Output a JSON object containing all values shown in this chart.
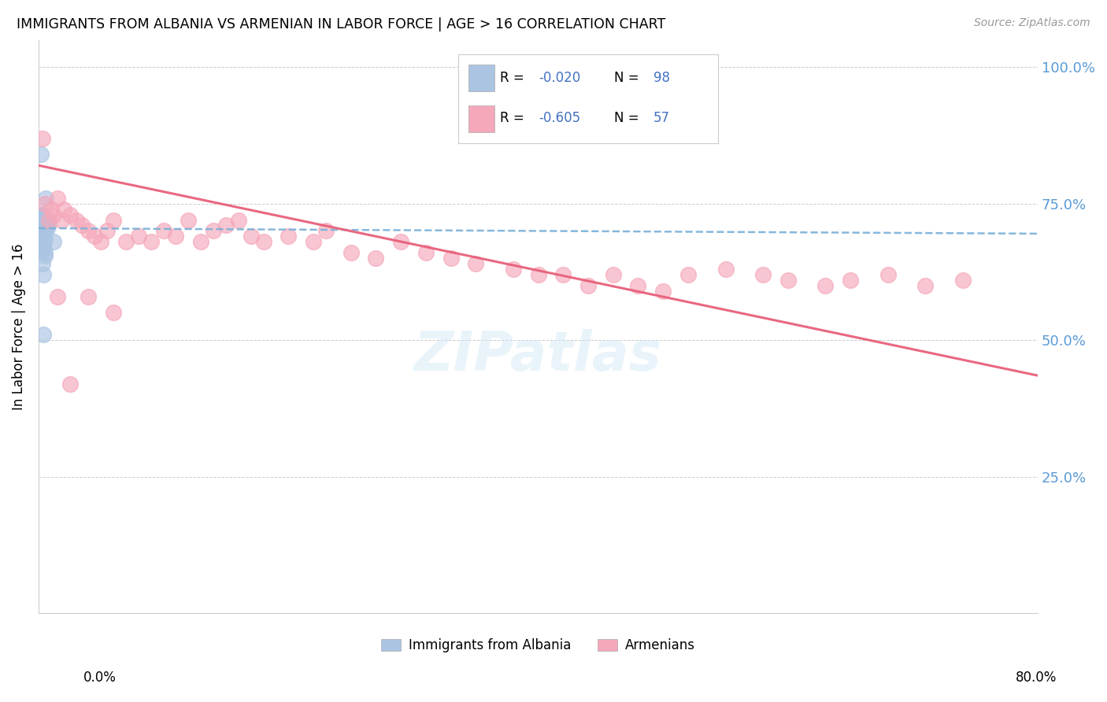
{
  "title": "IMMIGRANTS FROM ALBANIA VS ARMENIAN IN LABOR FORCE | AGE > 16 CORRELATION CHART",
  "source": "Source: ZipAtlas.com",
  "ylabel": "In Labor Force | Age > 16",
  "ytick_labels": [
    "",
    "25.0%",
    "50.0%",
    "75.0%",
    "100.0%"
  ],
  "ytick_positions": [
    0.0,
    0.25,
    0.5,
    0.75,
    1.0
  ],
  "xlim": [
    0.0,
    0.8
  ],
  "ylim": [
    0.0,
    1.05
  ],
  "albania_R": -0.02,
  "albania_N": 98,
  "armenian_R": -0.605,
  "armenian_N": 57,
  "albania_color": "#aac4e2",
  "armenian_color": "#f5a8ba",
  "albania_line_color": "#7ab0d8",
  "armenian_line_color": "#e8607a",
  "legend_albania_label": "Immigrants from Albania",
  "legend_armenian_label": "Armenians",
  "watermark": "ZIPatlas",
  "background_color": "#ffffff",
  "grid_color": "#cccccc",
  "albania_x": [
    0.002,
    0.003,
    0.004,
    0.005,
    0.006,
    0.007,
    0.008,
    0.003,
    0.004,
    0.005,
    0.002,
    0.003,
    0.004,
    0.005,
    0.006,
    0.003,
    0.004,
    0.005,
    0.002,
    0.003,
    0.004,
    0.005,
    0.003,
    0.004,
    0.005,
    0.006,
    0.002,
    0.003,
    0.004,
    0.005,
    0.003,
    0.004,
    0.005,
    0.002,
    0.003,
    0.004,
    0.005,
    0.003,
    0.004,
    0.005,
    0.002,
    0.003,
    0.004,
    0.005,
    0.003,
    0.004,
    0.002,
    0.003,
    0.004,
    0.005,
    0.003,
    0.004,
    0.005,
    0.002,
    0.003,
    0.004,
    0.003,
    0.004,
    0.005,
    0.003,
    0.002,
    0.003,
    0.004,
    0.005,
    0.003,
    0.004,
    0.005,
    0.002,
    0.003,
    0.004,
    0.003,
    0.004,
    0.005,
    0.002,
    0.003,
    0.004,
    0.005,
    0.003,
    0.004,
    0.005,
    0.002,
    0.003,
    0.004,
    0.005,
    0.003,
    0.004,
    0.005,
    0.002,
    0.006,
    0.003,
    0.004,
    0.005,
    0.003,
    0.004,
    0.012,
    0.003,
    0.004,
    0.005
  ],
  "albania_y": [
    0.72,
    0.715,
    0.7,
    0.725,
    0.71,
    0.705,
    0.715,
    0.72,
    0.71,
    0.705,
    0.73,
    0.715,
    0.72,
    0.7,
    0.71,
    0.725,
    0.705,
    0.715,
    0.73,
    0.72,
    0.71,
    0.7,
    0.715,
    0.725,
    0.705,
    0.72,
    0.71,
    0.7,
    0.715,
    0.725,
    0.72,
    0.705,
    0.715,
    0.73,
    0.71,
    0.7,
    0.72,
    0.725,
    0.705,
    0.715,
    0.72,
    0.71,
    0.7,
    0.725,
    0.705,
    0.715,
    0.73,
    0.72,
    0.71,
    0.7,
    0.715,
    0.725,
    0.705,
    0.72,
    0.71,
    0.7,
    0.715,
    0.725,
    0.705,
    0.72,
    0.71,
    0.7,
    0.715,
    0.725,
    0.705,
    0.72,
    0.71,
    0.7,
    0.715,
    0.725,
    0.72,
    0.705,
    0.715,
    0.73,
    0.71,
    0.7,
    0.72,
    0.725,
    0.705,
    0.715,
    0.68,
    0.695,
    0.67,
    0.685,
    0.665,
    0.68,
    0.655,
    0.84,
    0.76,
    0.69,
    0.67,
    0.66,
    0.64,
    0.62,
    0.68,
    0.7,
    0.51,
    0.72
  ],
  "armenian_x": [
    0.003,
    0.005,
    0.008,
    0.01,
    0.012,
    0.015,
    0.018,
    0.02,
    0.025,
    0.03,
    0.035,
    0.04,
    0.045,
    0.05,
    0.055,
    0.06,
    0.07,
    0.08,
    0.09,
    0.1,
    0.11,
    0.12,
    0.13,
    0.14,
    0.15,
    0.16,
    0.17,
    0.18,
    0.2,
    0.22,
    0.23,
    0.25,
    0.27,
    0.29,
    0.31,
    0.33,
    0.35,
    0.38,
    0.4,
    0.42,
    0.44,
    0.46,
    0.48,
    0.5,
    0.52,
    0.55,
    0.58,
    0.6,
    0.63,
    0.65,
    0.68,
    0.71,
    0.74,
    0.015,
    0.025,
    0.04,
    0.06
  ],
  "armenian_y": [
    0.87,
    0.75,
    0.72,
    0.74,
    0.73,
    0.76,
    0.72,
    0.74,
    0.73,
    0.72,
    0.71,
    0.7,
    0.69,
    0.68,
    0.7,
    0.72,
    0.68,
    0.69,
    0.68,
    0.7,
    0.69,
    0.72,
    0.68,
    0.7,
    0.71,
    0.72,
    0.69,
    0.68,
    0.69,
    0.68,
    0.7,
    0.66,
    0.65,
    0.68,
    0.66,
    0.65,
    0.64,
    0.63,
    0.62,
    0.62,
    0.6,
    0.62,
    0.6,
    0.59,
    0.62,
    0.63,
    0.62,
    0.61,
    0.6,
    0.61,
    0.62,
    0.6,
    0.61,
    0.58,
    0.42,
    0.58,
    0.55
  ],
  "albania_trend_x": [
    0.0,
    0.8
  ],
  "albania_trend_y": [
    0.705,
    0.695
  ],
  "armenian_trend_x": [
    0.0,
    0.8
  ],
  "armenian_trend_y": [
    0.82,
    0.435
  ]
}
